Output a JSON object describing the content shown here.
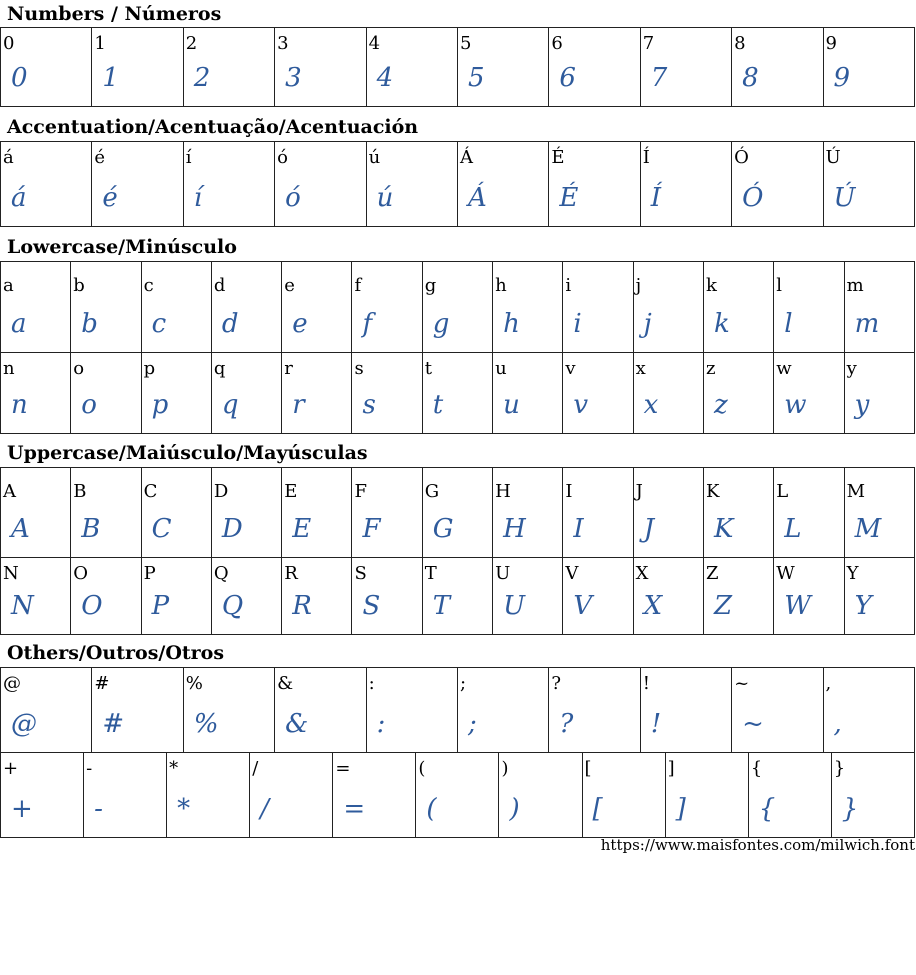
{
  "sections": [
    {
      "title": "Numbers / Números",
      "rows": [
        [
          "0",
          "1",
          "2",
          "3",
          "4",
          "5",
          "6",
          "7",
          "8",
          "9"
        ]
      ]
    },
    {
      "title": "Accentuation/Acentuação/Acentuación",
      "rows": [
        [
          "á",
          "é",
          "í",
          "ó",
          "ú",
          "Á",
          "É",
          "Í",
          "Ó",
          "Ú"
        ]
      ]
    },
    {
      "title": "Lowercase/Minúsculo",
      "rows": [
        [
          "a",
          "b",
          "c",
          "d",
          "e",
          "f",
          "g",
          "h",
          "i",
          "j",
          "k",
          "l",
          "m"
        ],
        [
          "n",
          "o",
          "p",
          "q",
          "r",
          "s",
          "t",
          "u",
          "v",
          "x",
          "z",
          "w",
          "y"
        ]
      ]
    },
    {
      "title": "Uppercase/Maiúsculo/Mayúsculas",
      "rows": [
        [
          "A",
          "B",
          "C",
          "D",
          "E",
          "F",
          "G",
          "H",
          "I",
          "J",
          "K",
          "L",
          "M"
        ],
        [
          "N",
          "O",
          "P",
          "Q",
          "R",
          "S",
          "T",
          "U",
          "V",
          "X",
          "Z",
          "W",
          "Y"
        ]
      ]
    },
    {
      "title": "Others/Outros/Otros",
      "rows": [
        [
          "@",
          "#",
          "%",
          "&",
          ":",
          ";",
          "?",
          "!",
          "~",
          ","
        ],
        [
          "+",
          "-",
          "*",
          "/",
          "=",
          "(",
          ")",
          "[",
          "]",
          "{",
          "}"
        ]
      ]
    }
  ],
  "footer": {
    "url": "https://www.maisfontes.com/milwich.font"
  },
  "colors": {
    "glyph": "#2f5b9c",
    "border": "#222222"
  }
}
